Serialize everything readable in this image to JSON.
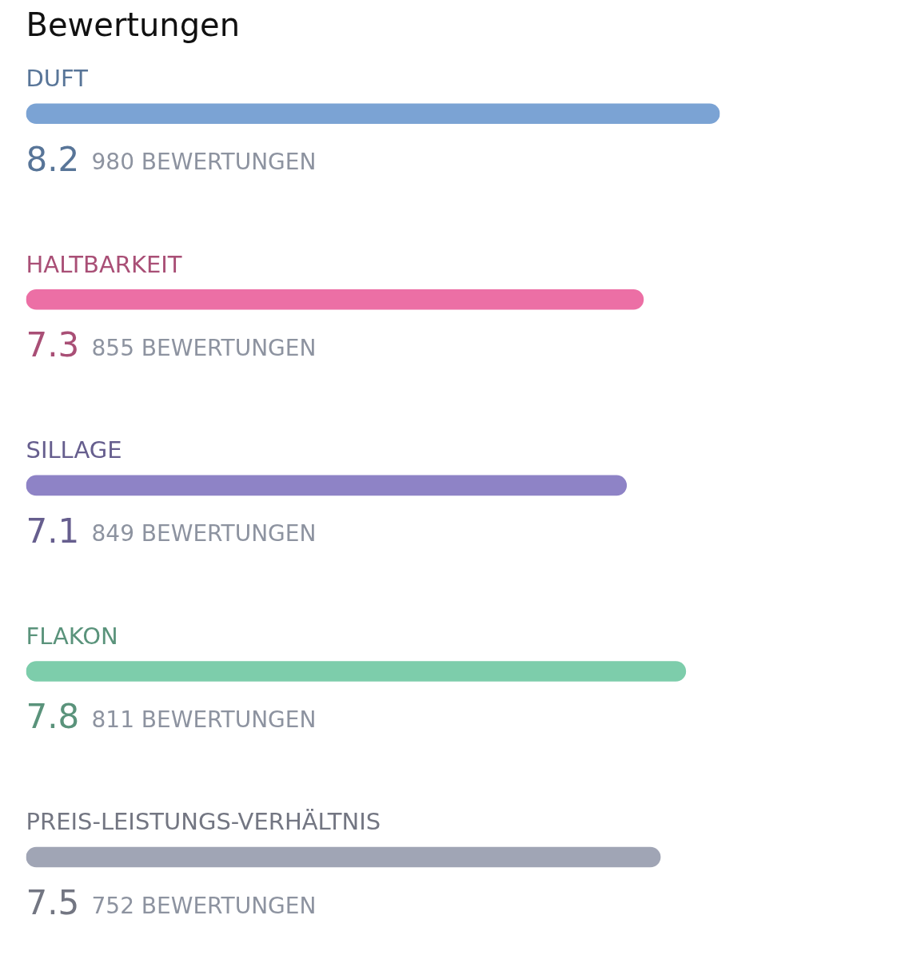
{
  "chart_data": {
    "type": "bar",
    "orientation": "horizontal",
    "title": "Bewertungen",
    "categories": [
      "DUFT",
      "HALTBARKEIT",
      "SILLAGE",
      "FLAKON",
      "PREIS-LEISTUNGS-VERHÄLTNIS"
    ],
    "values": [
      8.2,
      7.3,
      7.1,
      7.8,
      7.5
    ],
    "colors": [
      "#7ba3d4",
      "#ec6fa5",
      "#8e83c6",
      "#7dcdab",
      "#a0a5b5"
    ],
    "data_labels": true,
    "tick_labels": false,
    "annotations": [
      "980 BEWERTUNGEN",
      "855 BEWERTUNGEN",
      "849 BEWERTUNGEN",
      "811 BEWERTUNGEN",
      "752 BEWERTUNGEN"
    ]
  }
}
